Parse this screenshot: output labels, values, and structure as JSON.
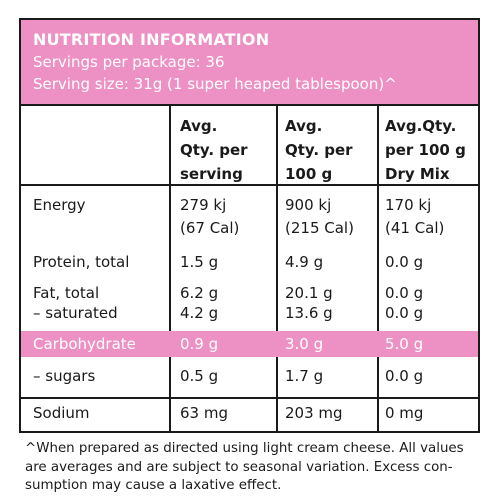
{
  "header": {
    "title": "NUTRITION INFORMATION",
    "servings": "Servings per package: 36",
    "serving_size": "Serving size: 31g (1 super heaped tablespoon)^"
  },
  "columns": [
    [
      "Avg.",
      "Qty. per",
      "serving"
    ],
    [
      "Avg.",
      "Qty. per",
      "100 g"
    ],
    [
      "Avg.Qty.",
      "per 100 g",
      "Dry Mix"
    ]
  ],
  "rows": {
    "energy": {
      "label": "Energy",
      "v1": "279 kj",
      "v1b": "(67 Cal)",
      "v2": "900 kj",
      "v2b": "(215 Cal)",
      "v3": "170 kj",
      "v3b": "(41 Cal)"
    },
    "protein": {
      "label": "Protein, total",
      "v1": "1.5 g",
      "v2": "4.9 g",
      "v3": "0.0 g"
    },
    "fat": {
      "label": "Fat, total",
      "v1": "6.2 g",
      "v2": "20.1 g",
      "v3": "0.0 g"
    },
    "saturated": {
      "label": "– saturated",
      "v1": "4.2 g",
      "v2": "13.6 g",
      "v3": "0.0 g"
    },
    "carbohydrate": {
      "label": "Carbohydrate",
      "v1": "0.9 g",
      "v2": "3.0 g",
      "v3": "5.0 g"
    },
    "sugars": {
      "label": "– sugars",
      "v1": "0.5 g",
      "v2": "1.7 g",
      "v3": "0.0 g"
    },
    "sodium": {
      "label": "Sodium",
      "v1": "63 mg",
      "v2": "203 mg",
      "v3": "0 mg"
    }
  },
  "footnote": "^When prepared as directed using light cream cheese. All values are averages and are subject to seasonal variation. Excess con-sumption may cause a laxative effect.",
  "colors": {
    "accent": "#ed90c4",
    "border": "#1a1a1a"
  }
}
